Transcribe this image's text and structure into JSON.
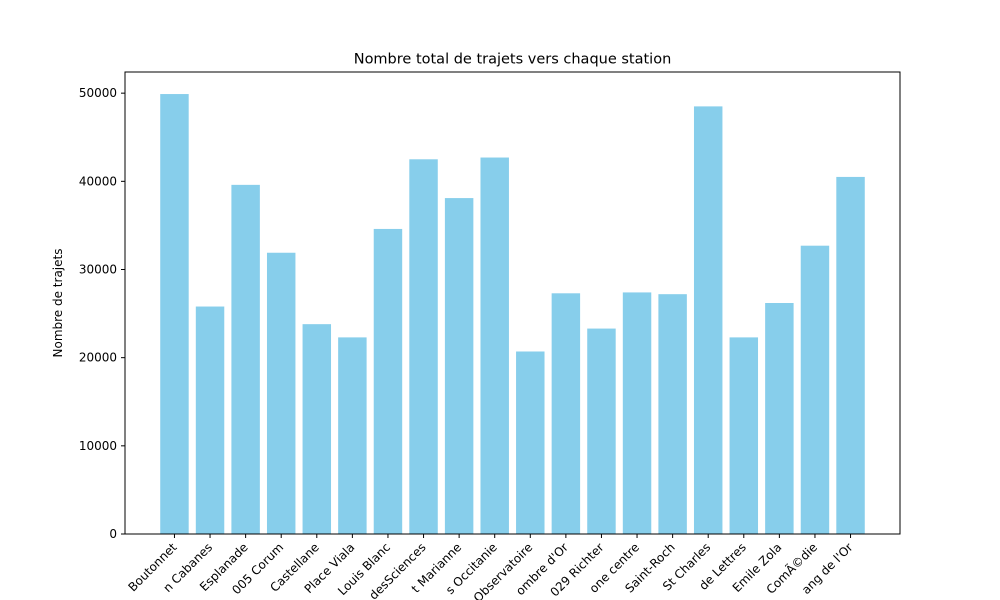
{
  "chart_data": {
    "type": "bar",
    "title": "Nombre total de trajets vers chaque station",
    "xlabel": "",
    "ylabel": "Nombre de trajets",
    "ylim": [
      0,
      52400
    ],
    "yticks": [
      0,
      10000,
      20000,
      30000,
      40000,
      50000
    ],
    "grid": false,
    "bar_color": "#87ceeb",
    "categories": [
      "Boutonnet",
      "n Cabanes",
      "Esplanade",
      "005 Corum",
      "Castellane",
      "Place Viala",
      "Louis Blanc",
      "desSciences",
      "t Marianne",
      "s Occitanie",
      "Observatoire",
      "ombre d'Or",
      "029 Richter",
      "one centre",
      "Saint-Roch",
      "St Charles",
      "de Lettres",
      "Emile Zola",
      "ComÃ©die",
      "ang de l'Or"
    ],
    "values": [
      49900,
      25800,
      39600,
      31900,
      23800,
      22300,
      34600,
      42500,
      38100,
      42700,
      20700,
      27300,
      23300,
      27400,
      27200,
      48500,
      22300,
      26200,
      32700,
      40500
    ]
  }
}
